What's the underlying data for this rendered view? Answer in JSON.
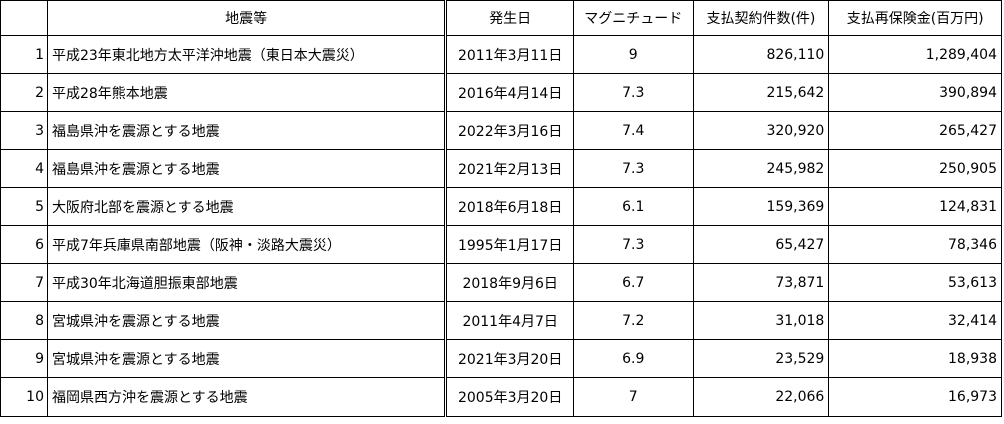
{
  "table": {
    "headers": {
      "rank": "",
      "name": "地震等",
      "date": "発生日",
      "magnitude": "マグニチュード",
      "contracts": "支払契約件数(件)",
      "payment": "支払再保険金(百万円)"
    },
    "rows": [
      {
        "rank": "1",
        "name": "平成23年東北地方太平洋沖地震（東日本大震災）",
        "date": "2011年3月11日",
        "magnitude": "9",
        "contracts": "826,110",
        "payment": "1,289,404"
      },
      {
        "rank": "2",
        "name": "平成28年熊本地震",
        "date": "2016年4月14日",
        "magnitude": "7.3",
        "contracts": "215,642",
        "payment": "390,894"
      },
      {
        "rank": "3",
        "name": "福島県沖を震源とする地震",
        "date": "2022年3月16日",
        "magnitude": "7.4",
        "contracts": "320,920",
        "payment": "265,427"
      },
      {
        "rank": "4",
        "name": "福島県沖を震源とする地震",
        "date": "2021年2月13日",
        "magnitude": "7.3",
        "contracts": "245,982",
        "payment": "250,905"
      },
      {
        "rank": "5",
        "name": "大阪府北部を震源とする地震",
        "date": "2018年6月18日",
        "magnitude": "6.1",
        "contracts": "159,369",
        "payment": "124,831"
      },
      {
        "rank": "6",
        "name": "平成7年兵庫県南部地震（阪神・淡路大震災）",
        "date": "1995年1月17日",
        "magnitude": "7.3",
        "contracts": "65,427",
        "payment": "78,346"
      },
      {
        "rank": "7",
        "name": "平成30年北海道胆振東部地震",
        "date": "2018年9月6日",
        "magnitude": "6.7",
        "contracts": "73,871",
        "payment": "53,613"
      },
      {
        "rank": "8",
        "name": "宮城県沖を震源とする地震",
        "date": "2011年4月7日",
        "magnitude": "7.2",
        "contracts": "31,018",
        "payment": "32,414"
      },
      {
        "rank": "9",
        "name": "宮城県沖を震源とする地震",
        "date": "2021年3月20日",
        "magnitude": "6.9",
        "contracts": "23,529",
        "payment": "18,938"
      },
      {
        "rank": "10",
        "name": "福岡県西方沖を震源とする地震",
        "date": "2005年3月20日",
        "magnitude": "7",
        "contracts": "22,066",
        "payment": "16,973"
      }
    ]
  }
}
